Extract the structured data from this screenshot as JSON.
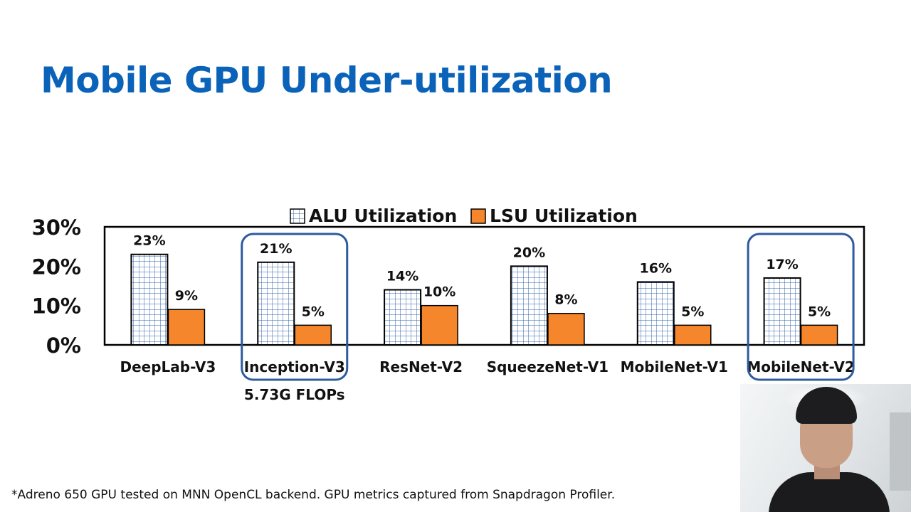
{
  "slide": {
    "title": "Mobile GPU Under-utilization",
    "footnote": "*Adreno 650 GPU tested on MNN OpenCL backend. GPU metrics captured from Snapdragon Profiler."
  },
  "colors": {
    "title": "#0a63b8",
    "alu_grid": "#2f5fa8",
    "lsu_fill": "#f5862b",
    "highlight_box": "#2d5aa0"
  },
  "chart_data": {
    "type": "bar",
    "title": "",
    "xlabel": "",
    "ylabel": "",
    "ylim": [
      0,
      30
    ],
    "y_ticks": [
      0,
      10,
      20,
      30
    ],
    "y_tick_labels": [
      "0%",
      "10%",
      "20%",
      "30%"
    ],
    "categories": [
      "DeepLab-V3",
      "Inception-V3",
      "ResNet-V2",
      "SqueezeNet-V1",
      "MobileNet-V1",
      "MobileNet-V2"
    ],
    "series": [
      {
        "name": "ALU Utilization",
        "values": [
          23,
          21,
          14,
          20,
          16,
          17
        ],
        "labels": [
          "23%",
          "21%",
          "14%",
          "20%",
          "16%",
          "17%"
        ],
        "style": "grid"
      },
      {
        "name": "LSU Utilization",
        "values": [
          9,
          5,
          10,
          8,
          5,
          5
        ],
        "labels": [
          "9%",
          "5%",
          "10%",
          "8%",
          "5%",
          "5%"
        ],
        "style": "solid"
      }
    ],
    "legend_placement": "top-center",
    "highlighted_categories": [
      "Inception-V3",
      "MobileNet-V2"
    ],
    "annotations": [
      {
        "category": "Inception-V3",
        "text": "5.73G FLOPs"
      }
    ]
  },
  "webcam": {
    "description_icon": "presenter-webcam"
  }
}
